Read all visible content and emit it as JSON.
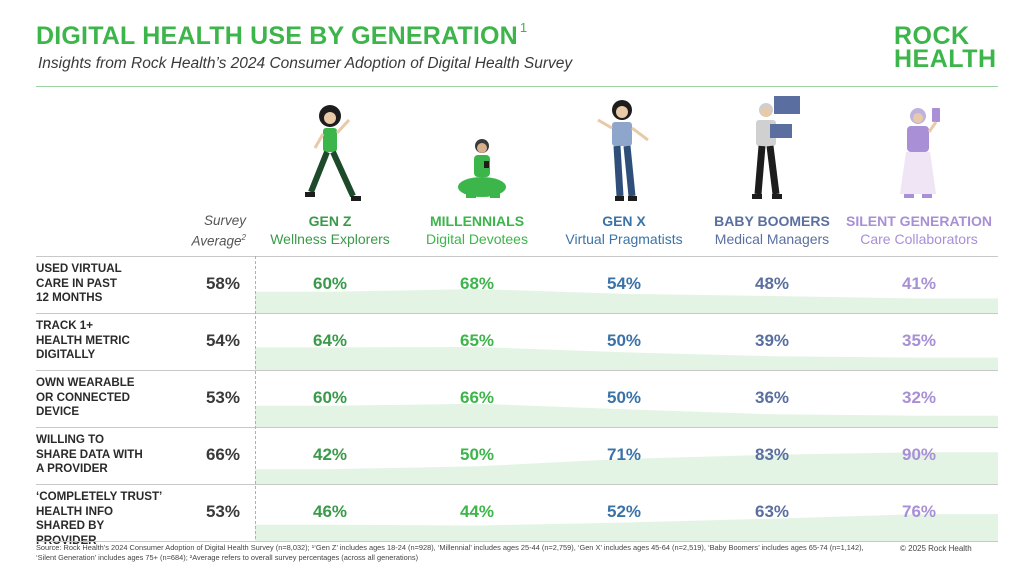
{
  "title": "DIGITAL HEALTH USE BY GENERATION",
  "title_sup": "1",
  "subtitle": "Insights from Rock Health’s 2024 Consumer Adoption of Digital Health Survey",
  "logo": {
    "line1": "ROCK",
    "line2": "HEALTH"
  },
  "survey_average_header": "Survey Average",
  "survey_average_sup": "2",
  "colors": {
    "green": "#3cb54a",
    "band": "#e3f4e4",
    "genz": "#3a9a4a",
    "millennials": "#3cb54a",
    "genx": "#3b73a8",
    "boomers": "#5a6fa0",
    "silent": "#a88fd6"
  },
  "chart_data": {
    "type": "table",
    "title": "DIGITAL HEALTH USE BY GENERATION",
    "generations": [
      {
        "name": "GEN Z",
        "persona": "Wellness Explorers",
        "color": "#3a9a4a",
        "icon": "gen-z-person-walking-icon"
      },
      {
        "name": "MILLENNIALS",
        "persona": "Digital Devotees",
        "color": "#3cb54a",
        "icon": "millennial-person-sitting-phone-icon"
      },
      {
        "name": "GEN X",
        "persona": "Virtual Pragmatists",
        "color": "#3b73a8",
        "icon": "gen-x-person-waving-icon"
      },
      {
        "name": "BABY BOOMERS",
        "persona": "Medical Managers",
        "color": "#5a6fa0",
        "icon": "boomer-person-laptop-icon"
      },
      {
        "name": "SILENT GENERATION",
        "persona": "Care Collaborators",
        "color": "#a88fd6",
        "icon": "silent-person-phone-icon"
      }
    ],
    "metrics": [
      {
        "label": "USED VIRTUAL CARE IN PAST 12 MONTHS",
        "lines": [
          "USED VIRTUAL",
          "CARE IN PAST",
          "12 MONTHS"
        ],
        "average": "58%",
        "values": [
          60,
          68,
          54,
          48,
          41
        ]
      },
      {
        "label": "TRACK 1+ HEALTH METRIC DIGITALLY",
        "lines": [
          "TRACK 1+",
          "HEALTH METRIC",
          "DIGITALLY"
        ],
        "average": "54%",
        "values": [
          64,
          65,
          50,
          39,
          35
        ]
      },
      {
        "label": "OWN WEARABLE OR CONNECTED DEVICE",
        "lines": [
          "OWN WEARABLE",
          "OR CONNECTED",
          "DEVICE"
        ],
        "average": "53%",
        "values": [
          60,
          66,
          50,
          36,
          32
        ]
      },
      {
        "label": "WILLING TO SHARE DATA WITH A PROVIDER",
        "lines": [
          "WILLING TO",
          "SHARE DATA WITH",
          "A PROVIDER"
        ],
        "average": "66%",
        "values": [
          42,
          50,
          71,
          83,
          90
        ]
      },
      {
        "label": "‘COMPLETELY TRUST’ HEALTH INFO SHARED BY PROVIDER",
        "lines": [
          "‘COMPLETELY TRUST’",
          "HEALTH INFO",
          "SHARED BY PROVIDER"
        ],
        "average": "53%",
        "values": [
          46,
          44,
          52,
          63,
          76
        ]
      }
    ]
  },
  "source": "Source: Rock Health’s 2024 Consumer Adoption of Digital Health Survey (n=8,032); ¹‘Gen Z’ includes ages 18-24 (n=928), ‘Millennial’ includes ages 25-44 (n=2,759), ‘Gen X’ includes ages 45-64 (n=2,519), ‘Baby Boomers’ includes ages 65-74 (n=1,142), ‘Silent Generation’ includes ages 75+ (n=684); ²Average refers to overall survey percentages (across all generations)",
  "copyright": "© 2025 Rock Health"
}
